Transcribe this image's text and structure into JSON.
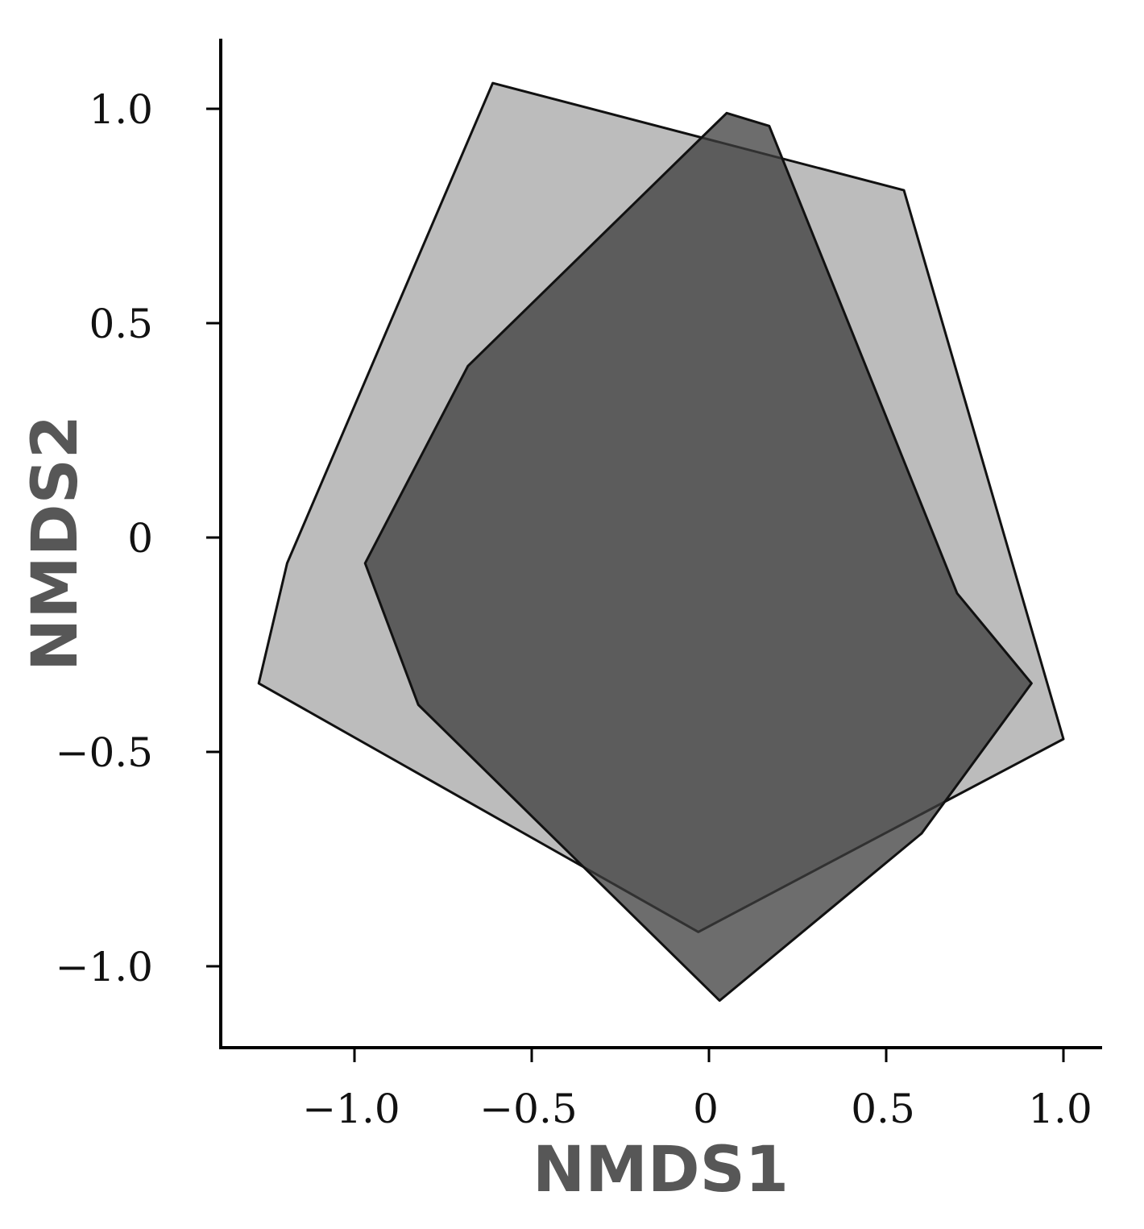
{
  "chart_data": {
    "type": "area",
    "xlabel": "NMDS1",
    "ylabel": "NMDS2",
    "xlim": [
      -1.38,
      1.1
    ],
    "ylim": [
      -1.2,
      1.16
    ],
    "xticks": [
      -1.0,
      -0.5,
      0,
      0.5,
      1.0
    ],
    "yticks": [
      -1.0,
      -0.5,
      0,
      0.5,
      1.0
    ],
    "xtick_labels": [
      "−1.0",
      "−0.5",
      "0",
      "0.5",
      "1.0"
    ],
    "ytick_labels": [
      "−1.0",
      "−0.5",
      "0",
      "0.5",
      "1.0"
    ],
    "grid": false,
    "series": [
      {
        "fill": "#b8b8b8",
        "opacity": 0.95,
        "stroke": "#111111",
        "points": [
          [
            -0.61,
            1.06
          ],
          [
            0.55,
            0.81
          ],
          [
            1.0,
            -0.47
          ],
          [
            -0.03,
            -0.92
          ],
          [
            -1.27,
            -0.34
          ],
          [
            -1.19,
            -0.06
          ]
        ]
      },
      {
        "fill": "#3c3c3c",
        "opacity": 0.75,
        "stroke": "#111111",
        "points": [
          [
            0.05,
            0.99
          ],
          [
            0.17,
            0.96
          ],
          [
            0.7,
            -0.13
          ],
          [
            0.91,
            -0.34
          ],
          [
            0.6,
            -0.69
          ],
          [
            0.03,
            -1.08
          ],
          [
            -0.82,
            -0.39
          ],
          [
            -0.97,
            -0.06
          ],
          [
            -0.68,
            0.4
          ]
        ]
      }
    ]
  }
}
